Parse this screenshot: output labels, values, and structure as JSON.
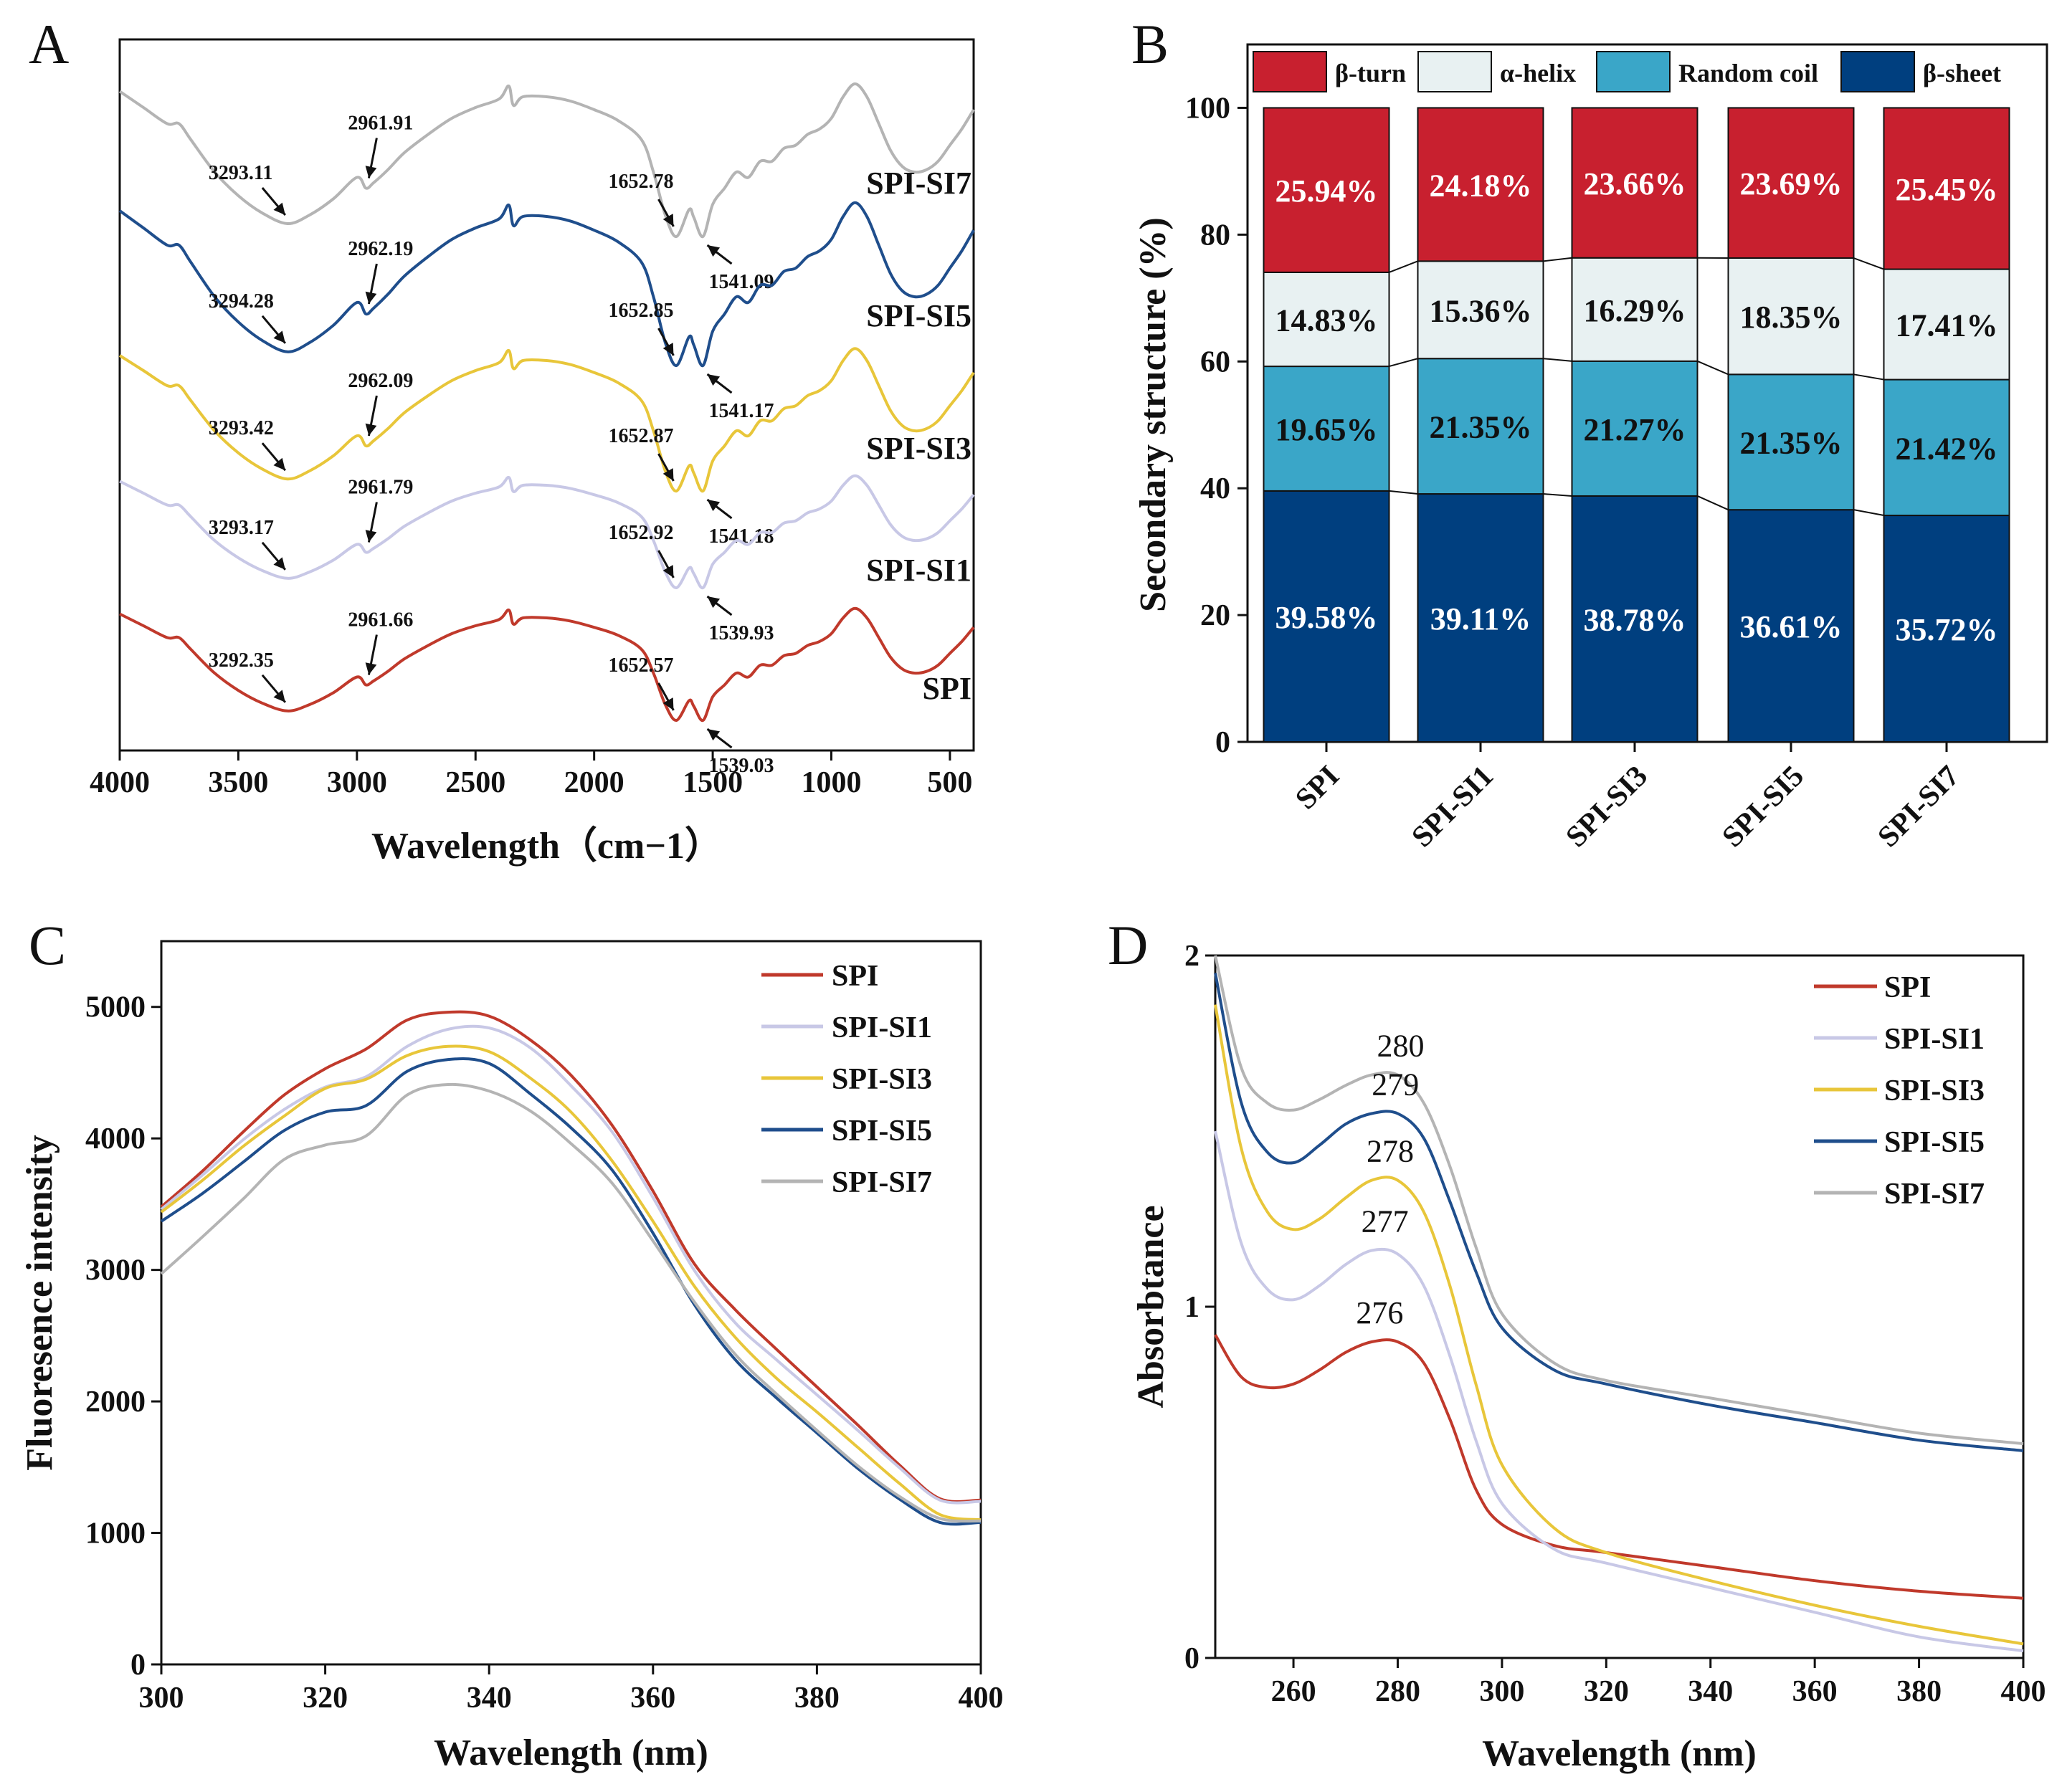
{
  "colors": {
    "SPI": "#c0392b",
    "SPI-SI1": "#c8c8e6",
    "SPI-SI3": "#e8c63a",
    "SPI-SI5": "#1f4e8c",
    "SPI-SI7": "#b4b4b4",
    "beta_turn": "#c8202f",
    "alpha_helix": "#e8f1f2",
    "random_coil": "#3aa6c8",
    "beta_sheet": "#003f7f"
  },
  "chart_data": [
    {
      "panel": "A",
      "type": "line",
      "xlabel": "Wavelength（cm−1）",
      "ylabel": "",
      "xlim": [
        4000,
        400
      ],
      "xticks": [
        "4000",
        "3500",
        "3000",
        "2500",
        "2000",
        "1500",
        "1000",
        "500"
      ],
      "series_labels": [
        "SPI-SI7",
        "SPI-SI5",
        "SPI-SI3",
        "SPI-SI1",
        "SPI"
      ],
      "series": [
        {
          "name": "SPI-SI7",
          "annotations": [
            "3293.11",
            "2961.91",
            "1652.78",
            "1541.09"
          ]
        },
        {
          "name": "SPI-SI5",
          "annotations": [
            "3294.28",
            "2962.19",
            "1652.85",
            "1541.17"
          ]
        },
        {
          "name": "SPI-SI3",
          "annotations": [
            "3293.42",
            "2962.09",
            "1652.87",
            "1541.18"
          ]
        },
        {
          "name": "SPI-SI1",
          "annotations": [
            "3293.17",
            "2961.79",
            "1652.92",
            "1539.93"
          ]
        },
        {
          "name": "SPI",
          "annotations": [
            "3292.35",
            "2961.66",
            "1652.57",
            "1539.03"
          ]
        }
      ]
    },
    {
      "panel": "B",
      "type": "bar",
      "stacked": true,
      "ylabel": "Secondary structure (%)",
      "ylim": [
        0,
        110
      ],
      "yticks": [
        "0",
        "20",
        "40",
        "60",
        "80",
        "100"
      ],
      "categories": [
        "SPI",
        "SPI-SI1",
        "SPI-SI3",
        "SPI-SI5",
        "SPI-SI7"
      ],
      "legend": [
        "β-turn",
        "α-helix",
        "Random coil",
        "β-sheet"
      ],
      "series": [
        {
          "name": "β-sheet",
          "values": [
            39.58,
            39.11,
            38.78,
            36.61,
            35.72
          ],
          "labels": [
            "39.58%",
            "39.11%",
            "38.78%",
            "36.61%",
            "35.72%"
          ]
        },
        {
          "name": "Random coil",
          "values": [
            19.65,
            21.35,
            21.27,
            21.35,
            21.42
          ],
          "labels": [
            "19.65%",
            "21.35%",
            "21.27%",
            "21.35%",
            "21.42%"
          ]
        },
        {
          "name": "α-helix",
          "values": [
            14.83,
            15.36,
            16.29,
            18.35,
            17.41
          ],
          "labels": [
            "14.83%",
            "15.36%",
            "16.29%",
            "18.35%",
            "17.41%"
          ]
        },
        {
          "name": "β-turn",
          "values": [
            25.94,
            24.18,
            23.66,
            23.69,
            25.45
          ],
          "labels": [
            "25.94%",
            "24.18%",
            "23.66%",
            "23.69%",
            "25.45%"
          ]
        }
      ]
    },
    {
      "panel": "C",
      "type": "line",
      "xlabel": "Wavelength (nm)",
      "ylabel": "Fluoresence intensity",
      "xlim": [
        300,
        400
      ],
      "ylim": [
        0,
        5500
      ],
      "xticks": [
        "300",
        "320",
        "340",
        "360",
        "380",
        "400"
      ],
      "yticks": [
        "0",
        "1000",
        "2000",
        "3000",
        "4000",
        "5000"
      ],
      "legend": [
        "SPI",
        "SPI-SI1",
        "SPI-SI3",
        "SPI-SI5",
        "SPI-SI7"
      ],
      "series": [
        {
          "name": "SPI",
          "x": [
            300,
            305,
            310,
            315,
            320,
            325,
            330,
            335,
            340,
            345,
            350,
            355,
            360,
            365,
            370,
            375,
            380,
            385,
            390,
            395,
            400
          ],
          "values": [
            3480,
            3750,
            4050,
            4330,
            4530,
            4680,
            4900,
            4960,
            4930,
            4750,
            4480,
            4100,
            3600,
            3050,
            2700,
            2400,
            2110,
            1820,
            1520,
            1260,
            1250
          ]
        },
        {
          "name": "SPI-SI1",
          "x": [
            300,
            305,
            310,
            315,
            320,
            325,
            330,
            335,
            340,
            345,
            350,
            355,
            360,
            365,
            370,
            375,
            380,
            385,
            390,
            395,
            400
          ],
          "values": [
            3460,
            3720,
            3990,
            4220,
            4390,
            4470,
            4700,
            4830,
            4840,
            4690,
            4400,
            4050,
            3550,
            3000,
            2600,
            2320,
            2050,
            1780,
            1500,
            1250,
            1240
          ]
        },
        {
          "name": "SPI-SI3",
          "x": [
            300,
            305,
            310,
            315,
            320,
            325,
            330,
            335,
            340,
            345,
            350,
            355,
            360,
            365,
            370,
            375,
            380,
            385,
            390,
            395,
            400
          ],
          "values": [
            3440,
            3680,
            3940,
            4170,
            4380,
            4450,
            4630,
            4700,
            4660,
            4460,
            4200,
            3830,
            3370,
            2880,
            2490,
            2180,
            1920,
            1650,
            1380,
            1140,
            1100
          ]
        },
        {
          "name": "SPI-SI5",
          "x": [
            300,
            305,
            310,
            315,
            320,
            325,
            330,
            335,
            340,
            345,
            350,
            355,
            360,
            365,
            370,
            375,
            380,
            385,
            390,
            395,
            400
          ],
          "values": [
            3370,
            3580,
            3820,
            4060,
            4200,
            4250,
            4510,
            4600,
            4570,
            4340,
            4080,
            3760,
            3280,
            2740,
            2320,
            2030,
            1760,
            1490,
            1260,
            1080,
            1080
          ]
        },
        {
          "name": "SPI-SI7",
          "x": [
            300,
            305,
            310,
            315,
            320,
            325,
            330,
            335,
            340,
            345,
            350,
            355,
            360,
            365,
            370,
            375,
            380,
            385,
            390,
            395,
            400
          ],
          "values": [
            2970,
            3250,
            3540,
            3840,
            3950,
            4020,
            4330,
            4410,
            4360,
            4210,
            3960,
            3660,
            3220,
            2760,
            2360,
            2060,
            1780,
            1510,
            1280,
            1110,
            1090
          ]
        }
      ]
    },
    {
      "panel": "D",
      "type": "line",
      "xlabel": "Wavelength (nm)",
      "ylabel": "Absorbtance",
      "xlim": [
        245,
        400
      ],
      "ylim": [
        0,
        2
      ],
      "xticks": [
        "260",
        "280",
        "300",
        "320",
        "340",
        "360",
        "380",
        "400"
      ],
      "yticks": [
        "0",
        "1",
        "2"
      ],
      "legend": [
        "SPI",
        "SPI-SI1",
        "SPI-SI3",
        "SPI-SI5",
        "SPI-SI7"
      ],
      "peak_labels": [
        "276",
        "277",
        "278",
        "279",
        "280"
      ],
      "series": [
        {
          "name": "SPI",
          "x": [
            245,
            250,
            255,
            260,
            265,
            270,
            275,
            280,
            285,
            290,
            295,
            300,
            310,
            320,
            340,
            360,
            380,
            400
          ],
          "values": [
            0.92,
            0.8,
            0.77,
            0.78,
            0.82,
            0.87,
            0.9,
            0.9,
            0.84,
            0.68,
            0.48,
            0.38,
            0.32,
            0.3,
            0.26,
            0.22,
            0.19,
            0.17
          ]
        },
        {
          "name": "SPI-SI1",
          "x": [
            245,
            250,
            255,
            260,
            265,
            270,
            275,
            280,
            285,
            290,
            295,
            300,
            310,
            320,
            340,
            360,
            380,
            400
          ],
          "values": [
            1.5,
            1.18,
            1.05,
            1.02,
            1.06,
            1.12,
            1.16,
            1.15,
            1.06,
            0.86,
            0.62,
            0.44,
            0.31,
            0.27,
            0.2,
            0.13,
            0.06,
            0.02
          ]
        },
        {
          "name": "SPI-SI3",
          "x": [
            245,
            250,
            255,
            260,
            265,
            270,
            275,
            280,
            285,
            290,
            295,
            300,
            310,
            320,
            340,
            360,
            380,
            400
          ],
          "values": [
            1.86,
            1.45,
            1.27,
            1.22,
            1.25,
            1.31,
            1.36,
            1.36,
            1.27,
            1.06,
            0.78,
            0.55,
            0.37,
            0.3,
            0.22,
            0.15,
            0.09,
            0.04
          ]
        },
        {
          "name": "SPI-SI5",
          "x": [
            245,
            250,
            255,
            260,
            265,
            270,
            275,
            280,
            285,
            290,
            295,
            300,
            310,
            320,
            340,
            360,
            380,
            400
          ],
          "values": [
            1.95,
            1.58,
            1.44,
            1.41,
            1.46,
            1.52,
            1.55,
            1.55,
            1.48,
            1.3,
            1.1,
            0.94,
            0.82,
            0.78,
            0.72,
            0.67,
            0.62,
            0.59
          ]
        },
        {
          "name": "SPI-SI7",
          "x": [
            245,
            250,
            255,
            260,
            265,
            270,
            275,
            280,
            285,
            290,
            295,
            300,
            310,
            320,
            340,
            360,
            380,
            400
          ],
          "values": [
            2.0,
            1.68,
            1.58,
            1.56,
            1.59,
            1.63,
            1.66,
            1.66,
            1.58,
            1.4,
            1.17,
            0.98,
            0.84,
            0.79,
            0.74,
            0.69,
            0.64,
            0.61
          ]
        }
      ]
    }
  ],
  "panels": {
    "A": "A",
    "B": "B",
    "C": "C",
    "D": "D"
  }
}
